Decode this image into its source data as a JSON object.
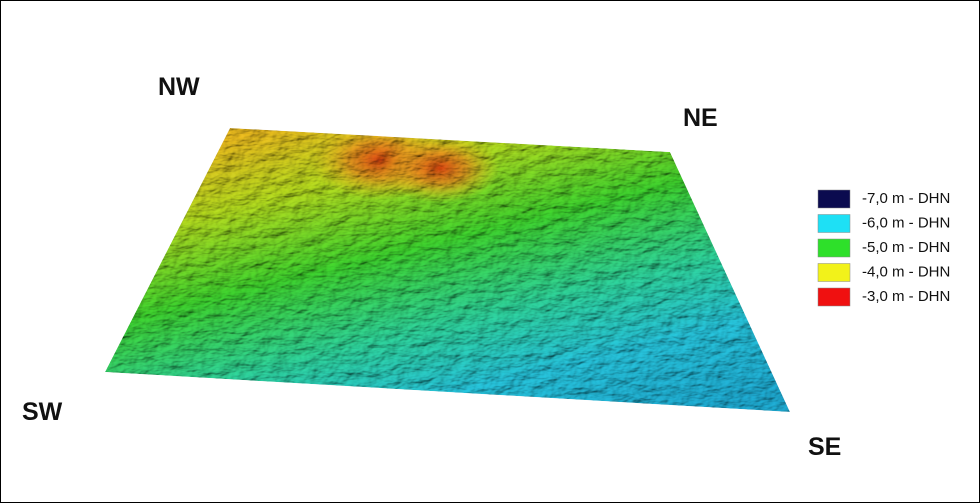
{
  "directions": {
    "nw": "NW",
    "ne": "NE",
    "sw": "SW",
    "se": "SE"
  },
  "legend": {
    "items": [
      {
        "label": "-7,0 m - DHN",
        "color": "#0b0b4f"
      },
      {
        "label": "-6,0 m - DHN",
        "color": "#1ee0f5"
      },
      {
        "label": "-5,0 m - DHN",
        "color": "#2ee02a"
      },
      {
        "label": "-4,0 m - DHN",
        "color": "#f2f21a"
      },
      {
        "label": "-3,0 m - DHN",
        "color": "#f01010"
      }
    ]
  }
}
